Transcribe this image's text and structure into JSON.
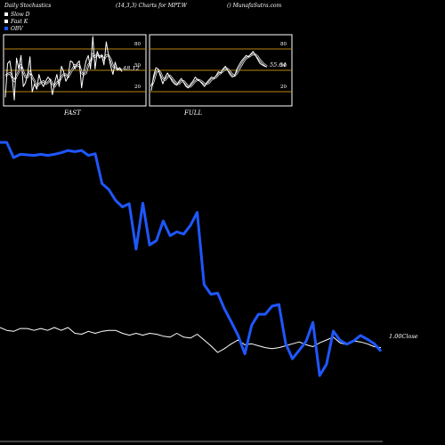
{
  "header": {
    "left": "Daily Stochastics",
    "middle": "(14,3,3) Charts for MPT.W",
    "right": "() MunafaSutra.com"
  },
  "legend": [
    {
      "label": "Slow  D",
      "color": "#ffffff"
    },
    {
      "label": "Fast K",
      "color": "#ffffff"
    },
    {
      "label": "OBV",
      "color": "#1f57ff"
    }
  ],
  "chart_data": [
    {
      "type": "line",
      "title": "FAST",
      "ylim": [
        0,
        100
      ],
      "ticks": [
        "80",
        "50",
        "20"
      ],
      "levels": [
        80,
        50,
        20
      ],
      "last_value_label": "48.12",
      "series": [
        {
          "name": "Fast K",
          "values": [
            10,
            60,
            64,
            42,
            6,
            68,
            52,
            72,
            26,
            32,
            46,
            70,
            18,
            30,
            22,
            44,
            32,
            26,
            34,
            40,
            36,
            14,
            32,
            44,
            26,
            56,
            48,
            34,
            40,
            64,
            62,
            52,
            60,
            64,
            24,
            48,
            64,
            72,
            52,
            100,
            52,
            78,
            68,
            72,
            58,
            92,
            72,
            56,
            44,
            62,
            50,
            54,
            48
          ]
        },
        {
          "name": "Slow D",
          "values": [
            42,
            44,
            46,
            40,
            34,
            42,
            48,
            58,
            48,
            40,
            40,
            48,
            40,
            34,
            26,
            30,
            32,
            34,
            30,
            32,
            36,
            30,
            26,
            32,
            34,
            40,
            44,
            44,
            40,
            46,
            52,
            58,
            56,
            58,
            46,
            44,
            46,
            58,
            62,
            74,
            70,
            74,
            70,
            72,
            66,
            72,
            72,
            66,
            56,
            54,
            52,
            52,
            50
          ]
        }
      ]
    },
    {
      "type": "line",
      "title": "FULL",
      "ylim": [
        0,
        100
      ],
      "ticks": [
        "80",
        "50",
        "20"
      ],
      "levels": [
        80,
        50,
        20
      ],
      "last_value_label": "55.64",
      "series": [
        {
          "name": "Full K",
          "values": [
            20,
            42,
            54,
            52,
            40,
            30,
            40,
            46,
            40,
            34,
            30,
            28,
            34,
            38,
            32,
            26,
            24,
            30,
            34,
            40,
            36,
            34,
            30,
            26,
            32,
            36,
            40,
            38,
            42,
            48,
            46,
            52,
            56,
            50,
            44,
            40,
            42,
            52,
            58,
            64,
            68,
            72,
            70,
            74,
            78,
            72,
            66,
            60,
            58,
            56,
            55
          ]
        },
        {
          "name": "Full D",
          "values": [
            26,
            34,
            46,
            50,
            46,
            38,
            36,
            40,
            42,
            38,
            34,
            30,
            30,
            34,
            34,
            30,
            26,
            26,
            30,
            34,
            36,
            35,
            33,
            30,
            30,
            32,
            36,
            38,
            40,
            44,
            46,
            49,
            52,
            52,
            48,
            44,
            42,
            46,
            52,
            58,
            64,
            68,
            70,
            72,
            74,
            73,
            70,
            65,
            61,
            58,
            56
          ]
        }
      ]
    },
    {
      "type": "line",
      "title": "",
      "ylabel_right": "1.00Close",
      "series": [
        {
          "name": "OBV",
          "values": [
            100.0,
            100.0,
            97.2,
            97.8,
            97.7,
            97.6,
            97.8,
            97.6,
            97.8,
            98.1,
            98.5,
            98.3,
            98.5,
            97.6,
            97.9,
            92.4,
            91.3,
            89.3,
            88.1,
            88.7,
            80.3,
            88.8,
            81.1,
            81.9,
            85.5,
            82.8,
            83.5,
            83.1,
            84.7,
            87.1,
            73.8,
            72.0,
            72.2,
            69.3,
            66.9,
            64.4,
            61.0,
            66.3,
            68.3,
            68.3,
            69.8,
            70.1,
            62.9,
            60.1,
            61.7,
            63.3,
            66.8,
            57.0,
            59.1,
            65.2,
            63.5,
            62.8,
            63.4,
            64.4,
            63.7,
            62.9,
            61.5
          ]
        },
        {
          "name": "Close",
          "values": [
            3.6,
            3.3,
            3.2,
            3.5,
            3.5,
            3.3,
            3.5,
            3.3,
            3.6,
            3.3,
            3.6,
            3.0,
            2.9,
            3.2,
            3.0,
            3.2,
            3.3,
            3.3,
            3.0,
            2.8,
            3.0,
            2.8,
            3.0,
            2.9,
            2.7,
            2.6,
            3.0,
            2.6,
            2.5,
            2.9,
            2.3,
            1.7,
            1.0,
            1.4,
            1.9,
            2.3,
            1.8,
            1.9,
            1.7,
            1.5,
            1.4,
            1.5,
            1.7,
            1.9,
            2.1,
            1.8,
            1.6,
            2.0,
            2.3,
            2.6,
            2.0,
            1.8,
            2.2,
            2.1,
            1.9,
            1.6,
            1.5
          ]
        }
      ]
    }
  ]
}
